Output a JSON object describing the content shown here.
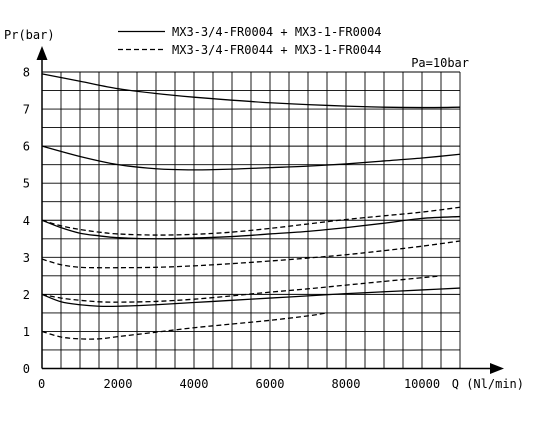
{
  "chart_data": {
    "type": "line",
    "ylabel": "Pr(bar)",
    "xlabel": "Q (Nl/min)",
    "annotation": "Pa=10bar",
    "xlim": [
      0,
      11000
    ],
    "ylim": [
      0,
      8
    ],
    "xticks": [
      0,
      2000,
      4000,
      6000,
      8000,
      10000
    ],
    "yticks": [
      0,
      1,
      2,
      3,
      4,
      5,
      6,
      7,
      8
    ],
    "grid": true,
    "legend": {
      "placement": "top",
      "entries": [
        {
          "label": "MX3-3/4-FR0004 + MX3-1-FR0004",
          "style": "solid"
        },
        {
          "label": "MX3-3/4-FR0044 + MX3-1-FR0044",
          "style": "dashed"
        }
      ]
    },
    "series": [
      {
        "style": "solid",
        "x": [
          0,
          1000,
          2000,
          3000,
          4000,
          5000,
          6000,
          7000,
          8000,
          9000,
          10000,
          11000
        ],
        "y": [
          7.95,
          7.75,
          7.55,
          7.42,
          7.32,
          7.24,
          7.17,
          7.12,
          7.08,
          7.05,
          7.04,
          7.05
        ]
      },
      {
        "style": "solid",
        "x": [
          0,
          1000,
          2000,
          3000,
          4000,
          5000,
          6000,
          7000,
          8000,
          9000,
          10000,
          11000
        ],
        "y": [
          6.0,
          5.72,
          5.5,
          5.39,
          5.36,
          5.38,
          5.42,
          5.46,
          5.52,
          5.6,
          5.68,
          5.78
        ]
      },
      {
        "style": "dashed",
        "x": [
          0,
          500,
          1000,
          1500,
          2000,
          3000,
          4000,
          5000,
          6000,
          7000,
          8000,
          9000,
          10000,
          11000
        ],
        "y": [
          4.0,
          3.85,
          3.75,
          3.68,
          3.63,
          3.6,
          3.62,
          3.68,
          3.78,
          3.9,
          4.02,
          4.12,
          4.22,
          4.35
        ]
      },
      {
        "style": "solid",
        "x": [
          0,
          500,
          1000,
          1500,
          2000,
          3000,
          4000,
          5000,
          6000,
          7000,
          8000,
          9000,
          10000,
          11000
        ],
        "y": [
          4.0,
          3.8,
          3.65,
          3.58,
          3.53,
          3.5,
          3.52,
          3.56,
          3.63,
          3.7,
          3.8,
          3.92,
          4.05,
          4.1
        ]
      },
      {
        "style": "dashed",
        "x": [
          0,
          500,
          1000,
          1500,
          2000,
          3000,
          4000,
          5000,
          6000,
          7000,
          8000,
          9000,
          10000,
          11000
        ],
        "y": [
          2.95,
          2.8,
          2.73,
          2.72,
          2.72,
          2.73,
          2.77,
          2.83,
          2.9,
          2.98,
          3.07,
          3.18,
          3.3,
          3.44
        ]
      },
      {
        "style": "dashed",
        "x": [
          0,
          500,
          1000,
          1500,
          2000,
          3000,
          4000,
          5000,
          6000,
          7000,
          8000,
          9000,
          10000,
          10500
        ],
        "y": [
          2.0,
          1.9,
          1.84,
          1.8,
          1.79,
          1.81,
          1.87,
          1.96,
          2.06,
          2.15,
          2.25,
          2.35,
          2.45,
          2.5
        ]
      },
      {
        "style": "solid",
        "x": [
          0,
          500,
          1000,
          1500,
          2000,
          3000,
          4000,
          5000,
          6000,
          7000,
          8000,
          9000,
          10000,
          11000
        ],
        "y": [
          2.0,
          1.8,
          1.72,
          1.68,
          1.68,
          1.72,
          1.78,
          1.84,
          1.9,
          1.96,
          2.02,
          2.07,
          2.12,
          2.17
        ]
      },
      {
        "style": "dashed",
        "x": [
          0,
          500,
          1000,
          1500,
          2000,
          3000,
          4000,
          5000,
          6000,
          7000,
          7500
        ],
        "y": [
          1.0,
          0.85,
          0.8,
          0.8,
          0.86,
          0.98,
          1.1,
          1.2,
          1.3,
          1.42,
          1.5
        ]
      }
    ]
  }
}
